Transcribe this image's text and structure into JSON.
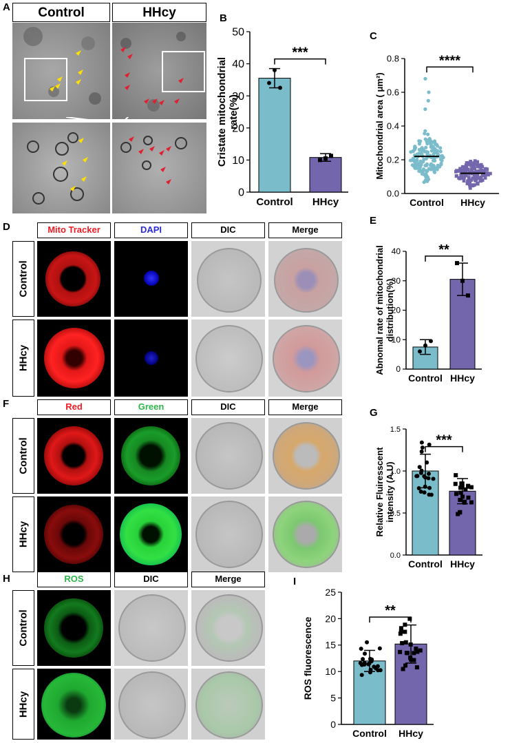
{
  "panels": {
    "A": {
      "letter": "A",
      "headers": [
        "Control",
        "HHcy"
      ]
    },
    "B": {
      "letter": "B"
    },
    "C": {
      "letter": "C"
    },
    "D": {
      "letter": "D",
      "headers": [
        "Mito Tracker",
        "DAPI",
        "DIC",
        "Merge"
      ],
      "rows": [
        "Control",
        "HHcy"
      ]
    },
    "E": {
      "letter": "E"
    },
    "F": {
      "letter": "F",
      "headers": [
        "Red",
        "Green",
        "DIC",
        "Merge"
      ],
      "rows": [
        "Control",
        "HHcy"
      ]
    },
    "G": {
      "letter": "G"
    },
    "H": {
      "letter": "H",
      "headers": [
        "ROS",
        "DIC",
        "Merge"
      ],
      "rows": [
        "Control",
        "HHcy"
      ]
    },
    "I": {
      "letter": "I"
    }
  },
  "colors": {
    "control": "#7bbccb",
    "hhcy": "#7466ad",
    "red": "#ee1b24",
    "green": "#2db54a",
    "blue": "#2a2ad6",
    "arrow_yellow": "#ffe000",
    "arrow_red": "#e0202e"
  },
  "chart_data": [
    {
      "id": "B",
      "type": "bar",
      "categories": [
        "Control",
        "HHcy"
      ],
      "values": [
        35.5,
        10.8
      ],
      "errors": [
        3.0,
        1.2
      ],
      "points": [
        [
          34,
          38,
          32.5
        ],
        [
          10,
          10.5,
          11.3
        ]
      ],
      "ylabel": "Cristate mitochondrial rate(%)",
      "ylim": [
        0,
        50
      ],
      "yticks": [
        0,
        10,
        20,
        30,
        40,
        50
      ],
      "significance": "***"
    },
    {
      "id": "C",
      "type": "scatter",
      "categories": [
        "Control",
        "HHcy"
      ],
      "means": [
        0.22,
        0.12
      ],
      "ylabel": "Mitochondrial area ( μm²)",
      "ylim": [
        0,
        0.8
      ],
      "yticks": [
        "0.0",
        "0.2",
        "0.4",
        "0.6",
        "0.8"
      ],
      "significance": "****"
    },
    {
      "id": "E",
      "type": "bar",
      "categories": [
        "Control",
        "HHcy"
      ],
      "values": [
        7.5,
        30.5
      ],
      "errors": [
        2.5,
        5.5
      ],
      "points": [
        [
          6,
          8,
          9.5
        ],
        [
          36,
          30,
          25
        ]
      ],
      "ylabel": "Abnomal rate of mitochondrial distribution(%)",
      "ylim": [
        0,
        40
      ],
      "yticks": [
        0,
        10,
        20,
        30,
        40
      ],
      "significance": "**"
    },
    {
      "id": "G",
      "type": "bar",
      "categories": [
        "Control",
        "HHcy"
      ],
      "values": [
        1.0,
        0.76
      ],
      "errors": [
        0.2,
        0.15
      ],
      "ylabel": "Relative Fluiresscent intensity  (A.U)",
      "ylim": [
        0,
        1.5
      ],
      "yticks": [
        "0.0",
        "0.5",
        "1.0",
        "1.5"
      ],
      "significance": "***"
    },
    {
      "id": "I",
      "type": "bar",
      "categories": [
        "Control",
        "HHcy"
      ],
      "values": [
        12.0,
        15.2
      ],
      "errors": [
        2.0,
        3.6
      ],
      "ylabel": "ROS fluorescence",
      "ylim": [
        0,
        25
      ],
      "yticks": [
        0,
        5,
        10,
        15,
        20,
        25
      ],
      "significance": "**"
    }
  ]
}
